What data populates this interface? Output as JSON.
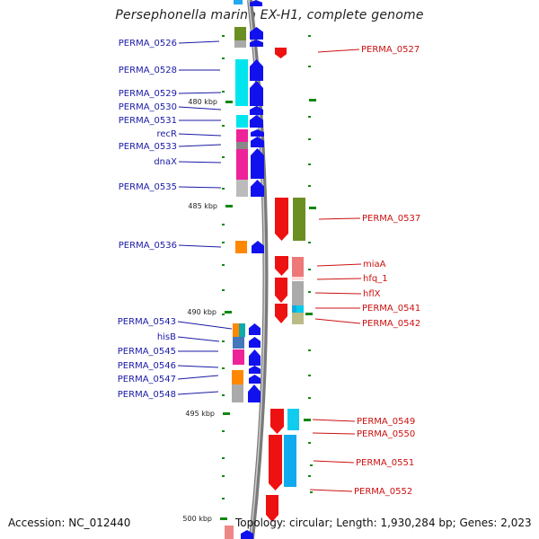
{
  "title": "Persephonella marina EX-H1, complete genome",
  "accession": "Accession: NC_012440",
  "summary": "Topology: circular; Length: 1,930,284 bp; Genes: 2,023",
  "ticks": [
    {
      "label": "480 kbp",
      "kbp": 480
    },
    {
      "label": "485 kbp",
      "kbp": 485
    },
    {
      "label": "490 kbp",
      "kbp": 490
    },
    {
      "label": "495 kbp",
      "kbp": 495
    },
    {
      "label": "500 kbp",
      "kbp": 500
    }
  ],
  "left_labels": [
    {
      "text": "PERMA_0526"
    },
    {
      "text": "PERMA_0528"
    },
    {
      "text": "PERMA_0529"
    },
    {
      "text": "PERMA_0530"
    },
    {
      "text": "PERMA_0531"
    },
    {
      "text": "recR"
    },
    {
      "text": "PERMA_0533"
    },
    {
      "text": "dnaX"
    },
    {
      "text": "PERMA_0535"
    },
    {
      "text": "PERMA_0536"
    },
    {
      "text": "PERMA_0543"
    },
    {
      "text": "hisB"
    },
    {
      "text": "PERMA_0545"
    },
    {
      "text": "PERMA_0546"
    },
    {
      "text": "PERMA_0547"
    },
    {
      "text": "PERMA_0548"
    }
  ],
  "right_labels": [
    {
      "text": "PERMA_0527"
    },
    {
      "text": "PERMA_0537"
    },
    {
      "text": "miaA"
    },
    {
      "text": "hfq_1"
    },
    {
      "text": "hflX"
    },
    {
      "text": "PERMA_0541"
    },
    {
      "text": "PERMA_0542"
    },
    {
      "text": "PERMA_0549"
    },
    {
      "text": "PERMA_0550"
    },
    {
      "text": "PERMA_0551"
    },
    {
      "text": "PERMA_0552"
    }
  ],
  "colors": {
    "forward_strand": "#1111ee",
    "reverse_strand": "#ee1111",
    "left_label": "#1a1aa6",
    "right_label": "#cc1111",
    "tick": "#118811",
    "backbone": "#888888"
  }
}
